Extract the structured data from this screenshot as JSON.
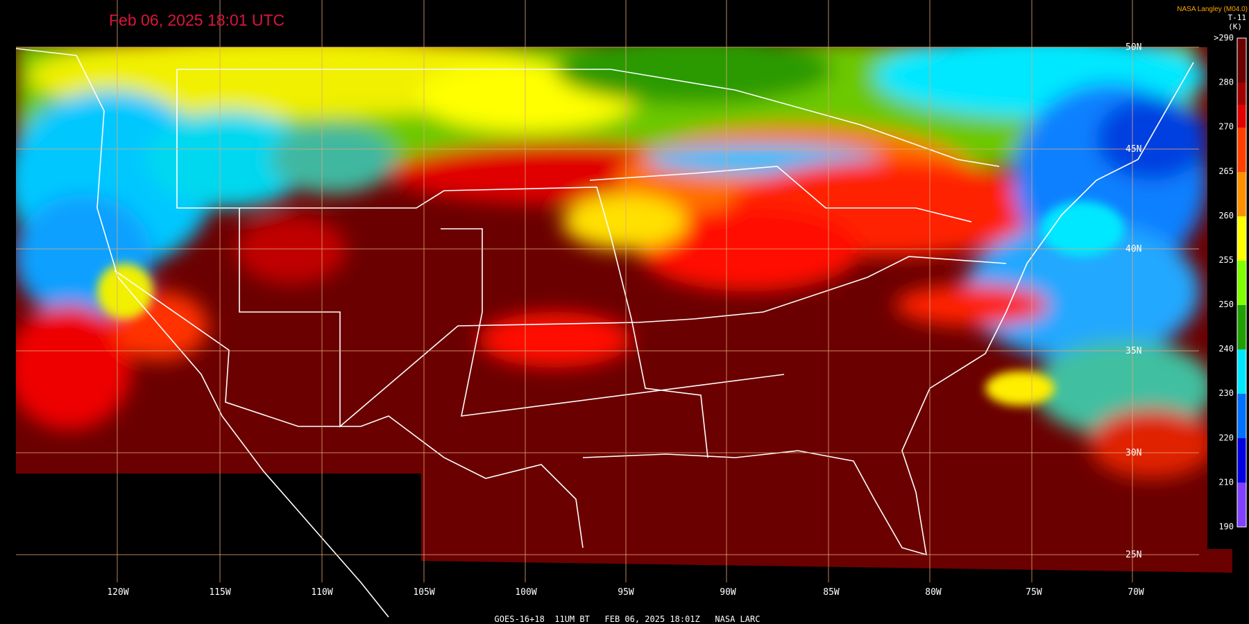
{
  "header": {
    "title": "Feb 06, 2025 18:01 UTC",
    "credit": "NASA Langley (M04.0)",
    "product": "T-11",
    "units": "(K)"
  },
  "map": {
    "longitude_labels": [
      "120W",
      "115W",
      "110W",
      "105W",
      "100W",
      "95W",
      "90W",
      "85W",
      "80W",
      "75W",
      "70W"
    ],
    "latitude_labels": [
      "50N",
      "45N",
      "40N",
      "35N",
      "30N",
      "25N"
    ]
  },
  "colorbar": {
    "labels": [
      ">290",
      "280",
      "270",
      "265",
      "260",
      "255",
      "250",
      "240",
      "230",
      "220",
      "210",
      "190"
    ]
  },
  "footer": "GOES-16+18  11UM BT   FEB 06, 2025 18:01Z   NASA LARC"
}
